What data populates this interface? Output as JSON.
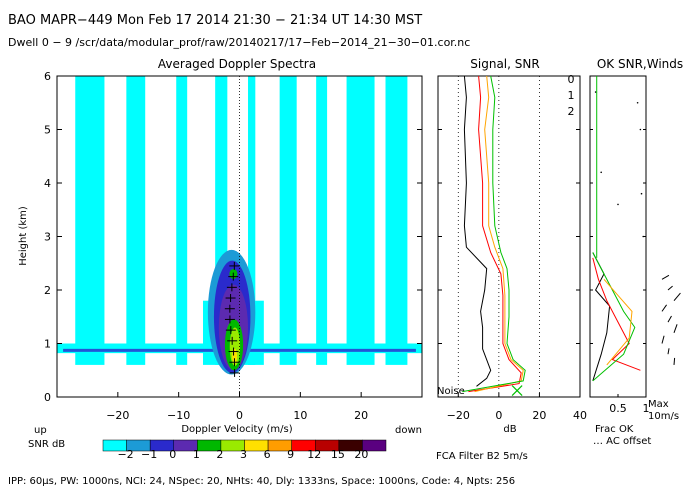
{
  "header": {
    "line1": "BAO  MAPR−449  Mon Feb 17 2014 21:30 − 21:34 UT 14:30 MST",
    "line2": "Dwell  0 −  9   /scr/data/modular_prof/raw/20140217/17−Feb−2014_21−30−01.cor.nc"
  },
  "footer": {
    "params": "IPP: 60µs,  PW: 1000ns,  NCI: 24,  NSpec: 20,  NHts: 40,  Dly: 1333ns,  Space: 1000ns,  Code: 4,  Npts: 256",
    "filter": "FCA Filter B2   5m/s",
    "frac_ok": "Frac OK",
    "ac_offset": "… AC offset",
    "max_label": "Max",
    "max_value": "10m/s",
    "noise": "Noise"
  },
  "colorbar": {
    "title": "SNR dB",
    "up": "up",
    "down": "down",
    "ticks": [
      "−2",
      "−1",
      "0",
      "1",
      "2",
      "3",
      "6",
      "9",
      "12",
      "15",
      "20"
    ],
    "colors": [
      "#00ffff",
      "#1c9bd6",
      "#2a2acc",
      "#5c2ab0",
      "#00b800",
      "#9aea00",
      "#ffe000",
      "#ff9d00",
      "#ff0000",
      "#b80000",
      "#3a0000",
      "#5a0080"
    ]
  },
  "chart_data": [
    {
      "type": "heatmap",
      "title": "Averaged Doppler Spectra",
      "xlabel": "Doppler Velocity (m/s)",
      "ylabel": "Height (km)",
      "xlim": [
        -30,
        30
      ],
      "ylim": [
        0,
        6
      ],
      "xticks": [
        "−20",
        "−10",
        "0",
        "10",
        "20"
      ],
      "yticks": [
        "0",
        "1",
        "2",
        "3",
        "4",
        "5",
        "6"
      ],
      "description_values": {
        "core_center_velocity": -0.5,
        "core_top_km": 2.7,
        "core_bottom_km": 0.4
      }
    },
    {
      "type": "line",
      "title": "Signal, SNR",
      "xlabel": "dB",
      "xlim": [
        -30,
        40
      ],
      "ylim": [
        0,
        6
      ],
      "xticks": [
        "−20",
        "0",
        "20",
        "40"
      ],
      "series": [
        {
          "name": "0",
          "color": "#ff0000"
        },
        {
          "name": "1",
          "color": "#ffa500"
        },
        {
          "name": "2",
          "color": "#00c000"
        },
        {
          "name": "noise",
          "color": "#000000"
        }
      ]
    },
    {
      "type": "line",
      "title": "OK SNR,Winds",
      "xlabel": "Frac OK",
      "xlim": [
        0,
        1
      ],
      "ylim": [
        0,
        6
      ],
      "xticks": [
        "0.5",
        "1"
      ]
    }
  ]
}
